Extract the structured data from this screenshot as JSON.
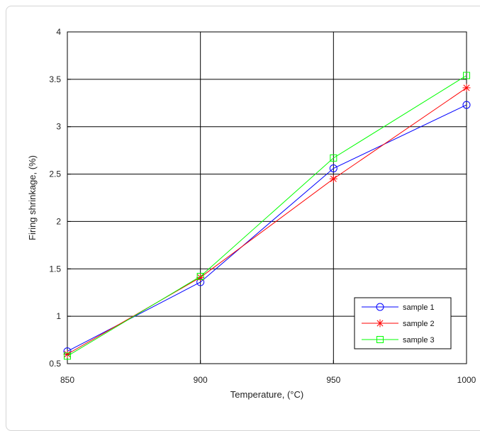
{
  "chart_data": {
    "type": "line",
    "xlabel": "Temperature, (°C)",
    "ylabel": "Firing shrinkage, (%)",
    "x": [
      850,
      900,
      950,
      1000
    ],
    "xlim": [
      850,
      1000
    ],
    "ylim": [
      0.5,
      4
    ],
    "x_ticks": [
      "850",
      "900",
      "950",
      "1000"
    ],
    "y_ticks": [
      "0.5",
      "1",
      "1.5",
      "2",
      "2.5",
      "3",
      "3.5",
      "4"
    ],
    "grid": true,
    "legend_position": "bottom-right",
    "series": [
      {
        "name": "sample 1",
        "values": [
          0.63,
          1.36,
          2.56,
          3.23
        ],
        "color": "#0000ff",
        "marker": "circle"
      },
      {
        "name": "sample 2",
        "values": [
          0.6,
          1.41,
          2.45,
          3.41
        ],
        "color": "#ff0000",
        "marker": "star"
      },
      {
        "name": "sample 3",
        "values": [
          0.58,
          1.42,
          2.67,
          3.54
        ],
        "color": "#00ff00",
        "marker": "square"
      }
    ]
  }
}
